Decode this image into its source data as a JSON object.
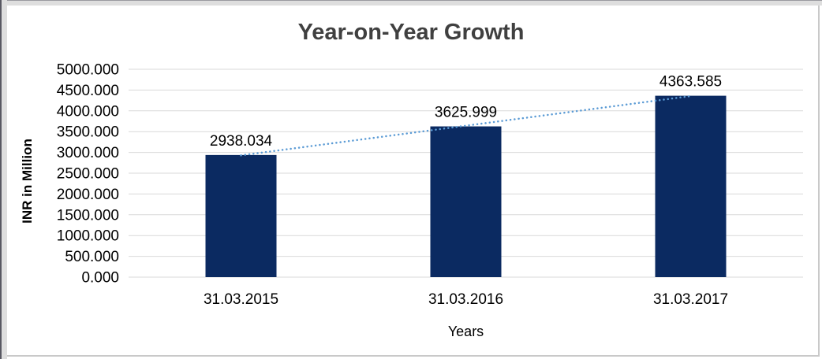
{
  "chart_data": {
    "type": "bar",
    "title": "Year-on-Year Growth",
    "categories": [
      "31.03.2015",
      "31.03.2016",
      "31.03.2017"
    ],
    "values": [
      2938.034,
      3625.999,
      4363.585
    ],
    "data_labels": [
      "2938.034",
      "3625.999",
      "4363.585"
    ],
    "xlabel": "Years",
    "ylabel": "INR in Million",
    "ylim": [
      0,
      5000
    ],
    "ytick_step": 500,
    "ytick_labels": [
      "0.000",
      "500.000",
      "1000.000",
      "1500.000",
      "2000.000",
      "2500.000",
      "3000.000",
      "3500.000",
      "4000.000",
      "4500.000",
      "5000.000"
    ],
    "grid": true,
    "legend": "none",
    "trendline": {
      "type": "linear",
      "style": "dotted"
    },
    "colors": {
      "bar": "#0b2a61",
      "trendline": "#5b9bd5",
      "gridline": "#d9d9d9",
      "title": "#404040",
      "text": "#000000"
    }
  }
}
